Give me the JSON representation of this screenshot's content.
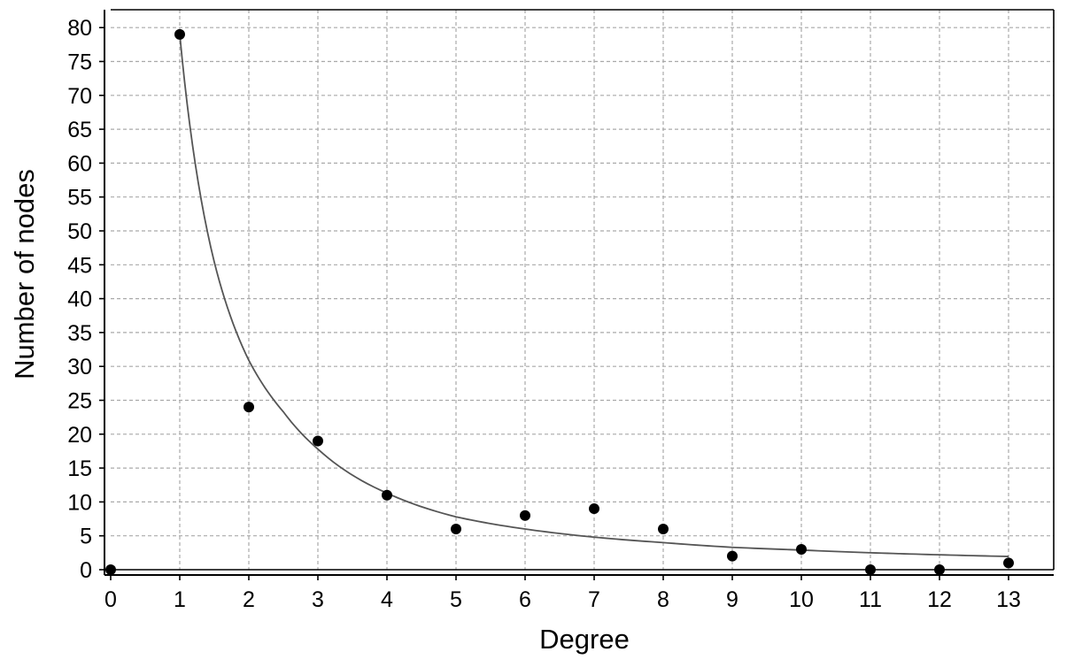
{
  "chart_data": {
    "type": "scatter",
    "title": "",
    "xlabel": "Degree",
    "ylabel": "Number of nodes",
    "xlim": [
      0,
      13.6
    ],
    "ylim": [
      0,
      82
    ],
    "x_ticks": [
      "0",
      "1",
      "2",
      "3",
      "4",
      "5",
      "6",
      "7",
      "8",
      "9",
      "10",
      "11",
      "12",
      "13"
    ],
    "y_ticks": [
      "0",
      "5",
      "10",
      "15",
      "20",
      "25",
      "30",
      "35",
      "40",
      "45",
      "50",
      "55",
      "60",
      "65",
      "70",
      "75",
      "80"
    ],
    "grid": true,
    "legend": "none",
    "series": [
      {
        "type": "scatter",
        "x": [
          0,
          1,
          2,
          3,
          4,
          5,
          6,
          7,
          8,
          9,
          10,
          11,
          12,
          13
        ],
        "y": [
          0,
          79,
          24,
          19,
          11,
          6,
          8,
          9,
          6,
          2,
          3,
          0,
          0,
          1
        ],
        "color": "#000000"
      },
      {
        "type": "line",
        "x": [
          1,
          1.5,
          2,
          2.5,
          3,
          4,
          5,
          6,
          7,
          8,
          9,
          10,
          11,
          12,
          13
        ],
        "y": [
          79,
          45.4,
          30.9,
          23.3,
          17.8,
          11.3,
          7.8,
          6.0,
          4.8,
          4.0,
          3.3,
          2.9,
          2.5,
          2.2,
          1.95
        ],
        "color": "#555555"
      }
    ]
  }
}
